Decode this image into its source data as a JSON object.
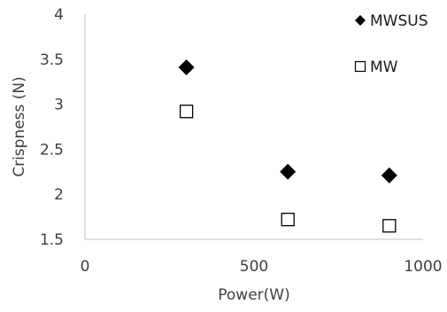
{
  "chart_data": {
    "type": "scatter",
    "title": "",
    "xlabel": "Power(W)",
    "ylabel": "Crispness (N)",
    "xlim": [
      0,
      1000
    ],
    "ylim": [
      1.5,
      4
    ],
    "x_ticks": [
      "0",
      "500",
      "1000"
    ],
    "y_ticks": [
      "1.5",
      "2",
      "2.5",
      "3",
      "3.5",
      "4"
    ],
    "legend_position": "top-right",
    "grid": false,
    "series": [
      {
        "name": "MWSUS",
        "marker": "filled-diamond",
        "color": "#000000",
        "x": [
          300,
          600,
          900
        ],
        "y": [
          3.41,
          2.25,
          2.21
        ]
      },
      {
        "name": "MW",
        "marker": "open-square",
        "color": "#000000",
        "x": [
          300,
          600,
          900
        ],
        "y": [
          2.92,
          1.72,
          1.65
        ]
      }
    ]
  }
}
